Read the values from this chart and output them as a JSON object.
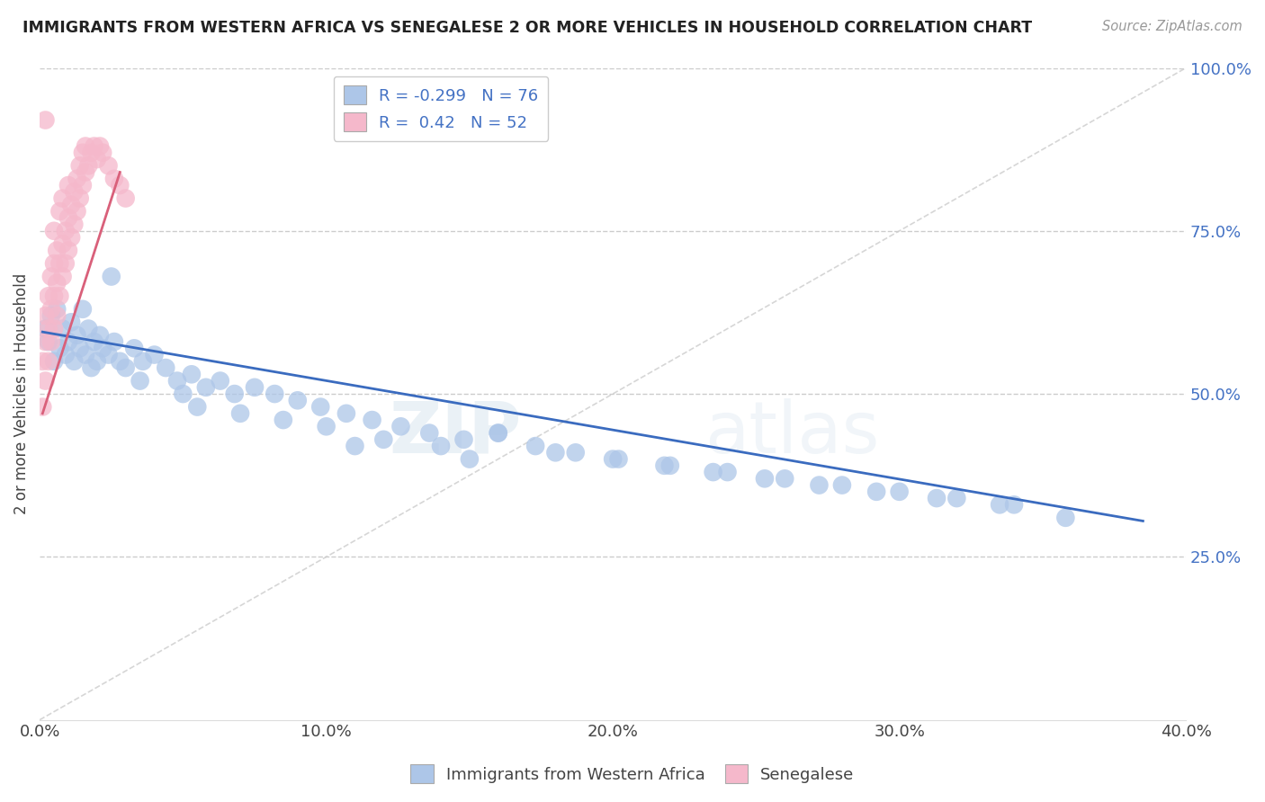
{
  "title": "IMMIGRANTS FROM WESTERN AFRICA VS SENEGALESE 2 OR MORE VEHICLES IN HOUSEHOLD CORRELATION CHART",
  "source": "Source: ZipAtlas.com",
  "ylabel": "2 or more Vehicles in Household",
  "xlim": [
    0.0,
    0.4
  ],
  "ylim": [
    0.0,
    1.0
  ],
  "xtick_labels": [
    "0.0%",
    "10.0%",
    "20.0%",
    "30.0%",
    "40.0%"
  ],
  "xtick_vals": [
    0.0,
    0.1,
    0.2,
    0.3,
    0.4
  ],
  "ytick_labels": [
    "25.0%",
    "50.0%",
    "75.0%",
    "100.0%"
  ],
  "ytick_vals": [
    0.25,
    0.5,
    0.75,
    1.0
  ],
  "blue_R": -0.299,
  "blue_N": 76,
  "pink_R": 0.42,
  "pink_N": 52,
  "blue_color": "#adc6e8",
  "pink_color": "#f5b8cb",
  "blue_line_color": "#3a6bbf",
  "pink_line_color": "#d9607a",
  "watermark_zip": "ZIP",
  "watermark_atlas": "atlas",
  "blue_scatter_x": [
    0.002,
    0.003,
    0.004,
    0.005,
    0.006,
    0.007,
    0.008,
    0.009,
    0.01,
    0.011,
    0.012,
    0.013,
    0.014,
    0.015,
    0.016,
    0.017,
    0.018,
    0.019,
    0.02,
    0.021,
    0.022,
    0.024,
    0.026,
    0.028,
    0.03,
    0.033,
    0.036,
    0.04,
    0.044,
    0.048,
    0.053,
    0.058,
    0.063,
    0.068,
    0.075,
    0.082,
    0.09,
    0.098,
    0.107,
    0.116,
    0.126,
    0.136,
    0.148,
    0.16,
    0.173,
    0.187,
    0.202,
    0.218,
    0.235,
    0.253,
    0.272,
    0.292,
    0.313,
    0.335,
    0.358,
    0.035,
    0.055,
    0.07,
    0.085,
    0.1,
    0.12,
    0.14,
    0.16,
    0.18,
    0.2,
    0.22,
    0.24,
    0.26,
    0.28,
    0.3,
    0.32,
    0.34,
    0.025,
    0.05,
    0.11,
    0.15
  ],
  "blue_scatter_y": [
    0.6,
    0.58,
    0.62,
    0.55,
    0.63,
    0.57,
    0.6,
    0.56,
    0.58,
    0.61,
    0.55,
    0.59,
    0.57,
    0.63,
    0.56,
    0.6,
    0.54,
    0.58,
    0.55,
    0.59,
    0.57,
    0.56,
    0.58,
    0.55,
    0.54,
    0.57,
    0.55,
    0.56,
    0.54,
    0.52,
    0.53,
    0.51,
    0.52,
    0.5,
    0.51,
    0.5,
    0.49,
    0.48,
    0.47,
    0.46,
    0.45,
    0.44,
    0.43,
    0.44,
    0.42,
    0.41,
    0.4,
    0.39,
    0.38,
    0.37,
    0.36,
    0.35,
    0.34,
    0.33,
    0.31,
    0.52,
    0.48,
    0.47,
    0.46,
    0.45,
    0.43,
    0.42,
    0.44,
    0.41,
    0.4,
    0.39,
    0.38,
    0.37,
    0.36,
    0.35,
    0.34,
    0.33,
    0.68,
    0.5,
    0.42,
    0.4
  ],
  "pink_scatter_x": [
    0.001,
    0.001,
    0.002,
    0.002,
    0.002,
    0.003,
    0.003,
    0.003,
    0.004,
    0.004,
    0.004,
    0.005,
    0.005,
    0.005,
    0.005,
    0.006,
    0.006,
    0.006,
    0.007,
    0.007,
    0.007,
    0.008,
    0.008,
    0.008,
    0.009,
    0.009,
    0.01,
    0.01,
    0.01,
    0.011,
    0.011,
    0.012,
    0.012,
    0.013,
    0.013,
    0.014,
    0.014,
    0.015,
    0.015,
    0.016,
    0.016,
    0.017,
    0.018,
    0.019,
    0.02,
    0.021,
    0.022,
    0.024,
    0.026,
    0.028,
    0.002,
    0.03
  ],
  "pink_scatter_y": [
    0.55,
    0.48,
    0.58,
    0.52,
    0.62,
    0.55,
    0.6,
    0.65,
    0.58,
    0.63,
    0.68,
    0.6,
    0.65,
    0.7,
    0.75,
    0.62,
    0.67,
    0.72,
    0.65,
    0.7,
    0.78,
    0.68,
    0.73,
    0.8,
    0.7,
    0.75,
    0.72,
    0.77,
    0.82,
    0.74,
    0.79,
    0.76,
    0.81,
    0.78,
    0.83,
    0.8,
    0.85,
    0.82,
    0.87,
    0.84,
    0.88,
    0.85,
    0.87,
    0.88,
    0.86,
    0.88,
    0.87,
    0.85,
    0.83,
    0.82,
    0.92,
    0.8
  ],
  "blue_line_x": [
    0.001,
    0.385
  ],
  "blue_line_y": [
    0.595,
    0.305
  ],
  "pink_line_x": [
    0.001,
    0.028
  ],
  "pink_line_y": [
    0.47,
    0.84
  ]
}
